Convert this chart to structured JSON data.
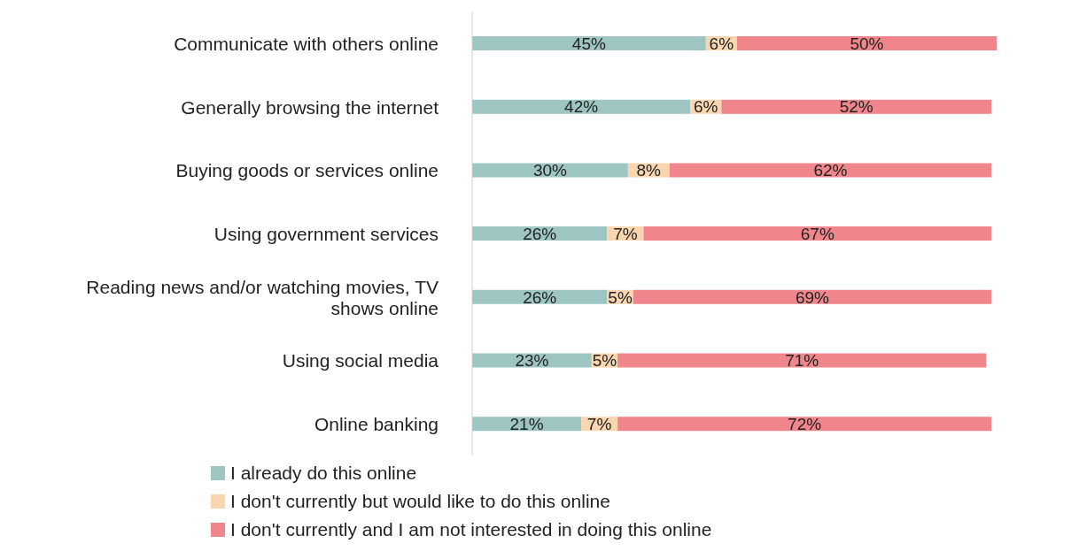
{
  "chart_data": {
    "type": "bar",
    "orientation": "horizontal",
    "stacked": true,
    "legend": "bottom",
    "categories": [
      "Communicate with others online",
      "Generally browsing the internet",
      "Buying goods or services online",
      "Using government services",
      "Reading news and/or watching movies, TV shows online",
      "Using social media",
      "Online banking"
    ],
    "series": [
      {
        "name": "I already do this online",
        "color": "#9dc6c3",
        "values": [
          45,
          42,
          30,
          26,
          26,
          23,
          21
        ],
        "value_labels": [
          "45%",
          "42%",
          "30%",
          "26%",
          "26%",
          "23%",
          "21%"
        ]
      },
      {
        "name": "I don't currently but would like to do this online",
        "color": "#fad6b0",
        "values": [
          6,
          6,
          8,
          7,
          5,
          5,
          7
        ],
        "value_labels": [
          "6%",
          "6%",
          "8%",
          "7%",
          "5%",
          "5%",
          "7%"
        ]
      },
      {
        "name": "I don't currently and I am not interested in doing this online",
        "color": "#f0868c",
        "values": [
          50,
          52,
          62,
          67,
          69,
          71,
          72
        ],
        "value_labels": [
          "50%",
          "52%",
          "62%",
          "67%",
          "69%",
          "71%",
          "72%"
        ]
      }
    ]
  }
}
